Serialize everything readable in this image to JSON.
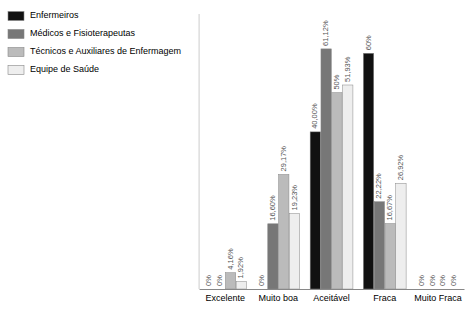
{
  "chart_data": {
    "type": "bar",
    "categories": [
      "Excelente",
      "Muito boa",
      "Aceitável",
      "Fraca",
      "Muito Fraca"
    ],
    "series": [
      {
        "name": "Enfermeiros",
        "color": "#111111",
        "values": [
          0,
          0,
          40.0,
          60,
          0
        ],
        "value_labels": [
          "0%",
          "0%",
          "40,00%",
          "60%",
          "0%"
        ]
      },
      {
        "name": "Médicos e Fisioterapeutas",
        "color": "#777777",
        "values": [
          0,
          16.6,
          61.12,
          22.22,
          0
        ],
        "value_labels": [
          "0%",
          "16,60%",
          "61,12%",
          "22,22%",
          "0%"
        ]
      },
      {
        "name": "Técnicos e Auxiliares de Enfermagem",
        "color": "#bbbbbb",
        "values": [
          4.16,
          29.17,
          50,
          16.67,
          0
        ],
        "value_labels": [
          "4,16%",
          "29,17%",
          "50%",
          "16,67%",
          "0%"
        ]
      },
      {
        "name": "Equipe de Saúde",
        "color": "#eeeeee",
        "values": [
          1.92,
          19.23,
          51.93,
          26.92,
          0
        ],
        "value_labels": [
          "1,92%",
          "19,23%",
          "51,93%",
          "26,92%",
          "0%"
        ]
      }
    ],
    "ylim": [
      0,
      70
    ],
    "data_labels": true,
    "tick_labels": "x",
    "legend": "left"
  }
}
